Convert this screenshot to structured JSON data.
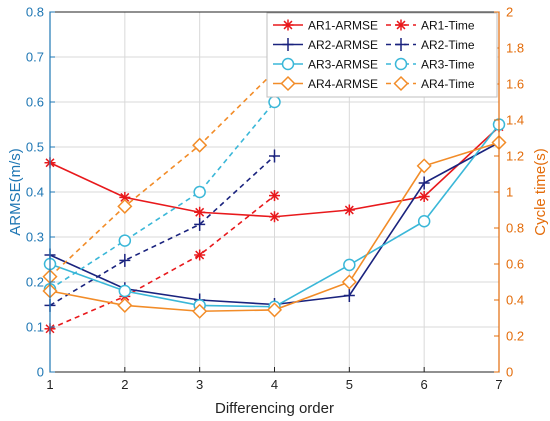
{
  "chart_data": {
    "type": "line",
    "xlabel": "Differencing order",
    "ylabel_left": "ARMSE(m/s)",
    "ylabel_right": "Cycle time(s)",
    "xlim": [
      1,
      7
    ],
    "ylim_left": [
      0,
      0.8
    ],
    "ylim_right": [
      0,
      2
    ],
    "x_ticks": [
      "1",
      "2",
      "3",
      "4",
      "5",
      "6",
      "7"
    ],
    "y_left_ticks": [
      "0",
      "0.1",
      "0.2",
      "0.3",
      "0.4",
      "0.5",
      "0.6",
      "0.7",
      "0.8"
    ],
    "y_right_ticks": [
      "0",
      "0.2",
      "0.4",
      "0.6",
      "0.8",
      "1",
      "1.2",
      "1.4",
      "1.6",
      "1.8",
      "2"
    ],
    "grid": true,
    "legend_position": "top-right",
    "colors": {
      "left_axis": "#1f77b4",
      "right_axis": "#e36c0a",
      "grid": "#d9d9d9"
    },
    "series": [
      {
        "name": "AR1-ARMSE",
        "axis": "left",
        "color": "#e8191c",
        "marker": "asterisk",
        "dash": false,
        "x": [
          1,
          2,
          3,
          4,
          5,
          6,
          7
        ],
        "values": [
          0.465,
          0.388,
          0.355,
          0.345,
          0.36,
          0.39,
          0.545
        ]
      },
      {
        "name": "AR1-Time",
        "axis": "right",
        "color": "#e8191c",
        "marker": "asterisk",
        "dash": true,
        "x": [
          1,
          2,
          3,
          4
        ],
        "values": [
          0.24,
          0.42,
          0.65,
          0.98
        ]
      },
      {
        "name": "AR2-ARMSE",
        "axis": "left",
        "color": "#1a237e",
        "marker": "plus",
        "dash": false,
        "x": [
          1,
          2,
          3,
          4,
          5,
          6,
          7
        ],
        "values": [
          0.26,
          0.185,
          0.16,
          0.15,
          0.17,
          0.42,
          0.51
        ]
      },
      {
        "name": "AR2-Time",
        "axis": "right",
        "color": "#1a237e",
        "marker": "plus",
        "dash": true,
        "x": [
          1,
          2,
          3,
          4
        ],
        "values": [
          0.37,
          0.62,
          0.82,
          1.2
        ]
      },
      {
        "name": "AR3-ARMSE",
        "axis": "left",
        "color": "#3ab7d8",
        "marker": "circle",
        "dash": false,
        "x": [
          1,
          2,
          3,
          4,
          5,
          6,
          7
        ],
        "values": [
          0.24,
          0.18,
          0.148,
          0.145,
          0.238,
          0.335,
          0.55
        ]
      },
      {
        "name": "AR3-Time",
        "axis": "right",
        "color": "#3ab7d8",
        "marker": "circle",
        "dash": true,
        "x": [
          1,
          2,
          3,
          4
        ],
        "values": [
          0.46,
          0.73,
          1.0,
          1.5
        ]
      },
      {
        "name": "AR4-ARMSE",
        "axis": "left",
        "color": "#f28c28",
        "marker": "diamond",
        "dash": false,
        "x": [
          1,
          2,
          3,
          4,
          5,
          6,
          7
        ],
        "values": [
          0.18,
          0.148,
          0.135,
          0.138,
          0.2,
          0.458,
          0.51
        ]
      },
      {
        "name": "AR4-Time",
        "axis": "right",
        "color": "#f28c28",
        "marker": "diamond",
        "dash": true,
        "x": [
          1,
          2,
          3,
          4
        ],
        "values": [
          0.53,
          0.92,
          1.26,
          1.67
        ]
      }
    ]
  }
}
